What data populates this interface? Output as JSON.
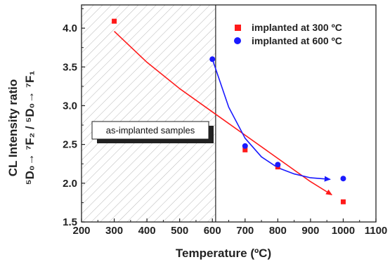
{
  "chart_data": {
    "type": "scatter",
    "xlabel": "Temperature (ºC)",
    "ylabel_line1": "CL Intensity ratio",
    "ylabel_line2": "⁵D₀→ ⁷F₂ / ⁵D₀→ ⁷F₁",
    "xlim": [
      200,
      1100
    ],
    "ylim": [
      1.5,
      4.3
    ],
    "x_ticks": [
      "200",
      "300",
      "400",
      "500",
      "600",
      "700",
      "800",
      "900",
      "1000",
      "1100"
    ],
    "y_ticks": [
      "1.5",
      "2.0",
      "2.5",
      "3.0",
      "3.5",
      "4.0"
    ],
    "shaded_region": {
      "x_from": 200,
      "x_to": 610,
      "pattern": "diagonal-hatch",
      "label": "as-implanted samples"
    },
    "legend_position": "top-right",
    "series": [
      {
        "name": "implanted at 300 ºC",
        "marker": "square",
        "color": "#ff1a1a",
        "points": [
          {
            "x": 300,
            "y": 4.09
          },
          {
            "x": 700,
            "y": 2.43
          },
          {
            "x": 800,
            "y": 2.21
          },
          {
            "x": 1000,
            "y": 1.76
          }
        ],
        "fit_curve": [
          [
            300,
            3.96
          ],
          [
            400,
            3.56
          ],
          [
            500,
            3.22
          ],
          [
            600,
            2.92
          ],
          [
            700,
            2.62
          ],
          [
            800,
            2.32
          ],
          [
            900,
            2.02
          ],
          [
            965,
            1.85
          ]
        ]
      },
      {
        "name": "implanted at 600 ºC",
        "marker": "circle",
        "color": "#1a1aff",
        "points": [
          {
            "x": 600,
            "y": 3.6
          },
          {
            "x": 700,
            "y": 2.48
          },
          {
            "x": 800,
            "y": 2.24
          },
          {
            "x": 1000,
            "y": 2.06
          }
        ],
        "fit_curve": [
          [
            600,
            3.6
          ],
          [
            650,
            2.98
          ],
          [
            700,
            2.58
          ],
          [
            750,
            2.34
          ],
          [
            800,
            2.2
          ],
          [
            850,
            2.12
          ],
          [
            900,
            2.07
          ],
          [
            960,
            2.05
          ]
        ]
      }
    ]
  }
}
